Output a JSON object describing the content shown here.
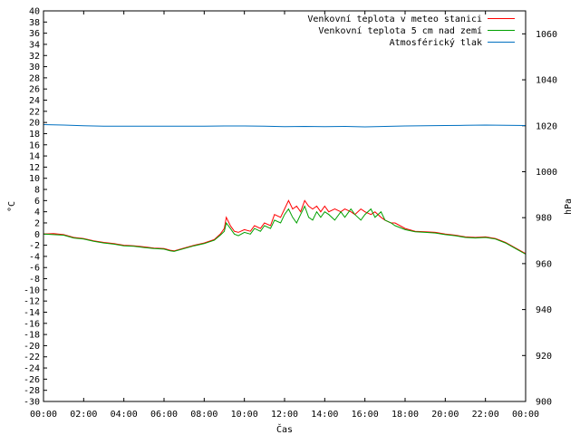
{
  "chart_data": {
    "type": "line",
    "xlabel": "Čas",
    "ylabel_left": "°C",
    "ylabel_right": "hPa",
    "x_tick_labels": [
      "00:00",
      "02:00",
      "04:00",
      "06:00",
      "08:00",
      "10:00",
      "12:00",
      "14:00",
      "16:00",
      "18:00",
      "20:00",
      "22:00",
      "00:00"
    ],
    "x_range_hours": [
      0,
      24
    ],
    "y_left_range": [
      -30,
      40
    ],
    "y_left_step": 2,
    "y_right_range": [
      900,
      1070
    ],
    "y_right_ticks": [
      900,
      920,
      940,
      960,
      980,
      1000,
      1020,
      1040,
      1060
    ],
    "grid": false,
    "legend_position": "top-right",
    "series": [
      {
        "name": "Venkovní teplota v meteo stanici",
        "color": "#ff0000",
        "axis": "left",
        "x": [
          0,
          0.5,
          1,
          1.5,
          2,
          2.5,
          3,
          3.5,
          4,
          4.5,
          5,
          5.5,
          6,
          6.3,
          6.5,
          7,
          7.5,
          8,
          8.5,
          8.8,
          9,
          9.1,
          9.3,
          9.5,
          9.7,
          10,
          10.3,
          10.5,
          10.8,
          11,
          11.3,
          11.5,
          11.8,
          12,
          12.2,
          12.4,
          12.6,
          12.8,
          13,
          13.2,
          13.4,
          13.6,
          13.8,
          14,
          14.2,
          14.5,
          14.8,
          15,
          15.3,
          15.5,
          15.8,
          16,
          16.3,
          16.5,
          16.8,
          17,
          17.3,
          17.5,
          18,
          18.5,
          19,
          19.5,
          20,
          20.5,
          21,
          21.5,
          22,
          22.5,
          23,
          23.5,
          24
        ],
        "values": [
          0,
          0.1,
          -0.1,
          -0.6,
          -0.8,
          -1.2,
          -1.5,
          -1.7,
          -2.0,
          -2.1,
          -2.3,
          -2.5,
          -2.6,
          -2.9,
          -3.0,
          -2.5,
          -2.0,
          -1.6,
          -1.0,
          0.0,
          1.0,
          3.0,
          1.5,
          0.5,
          0.3,
          0.8,
          0.5,
          1.5,
          1.0,
          2.0,
          1.5,
          3.5,
          3.0,
          4.5,
          6.0,
          4.5,
          5.0,
          4.0,
          6.0,
          5.0,
          4.5,
          5.0,
          4.0,
          5.0,
          4.0,
          4.5,
          4.0,
          4.5,
          4.0,
          3.5,
          4.5,
          4.0,
          3.5,
          4.0,
          3.0,
          2.5,
          2.0,
          2.0,
          1.0,
          0.5,
          0.4,
          0.3,
          0.0,
          -0.2,
          -0.5,
          -0.6,
          -0.5,
          -0.8,
          -1.5,
          -2.5,
          -3.5
        ]
      },
      {
        "name": "Venkovní teplota 5 cm nad zemí",
        "color": "#00a000",
        "axis": "left",
        "x": [
          0,
          0.5,
          1,
          1.5,
          2,
          2.5,
          3,
          3.5,
          4,
          4.5,
          5,
          5.5,
          6,
          6.3,
          6.5,
          7,
          7.5,
          8,
          8.5,
          8.8,
          9,
          9.1,
          9.3,
          9.5,
          9.7,
          10,
          10.3,
          10.5,
          10.8,
          11,
          11.3,
          11.5,
          11.8,
          12,
          12.2,
          12.4,
          12.6,
          12.8,
          13,
          13.2,
          13.4,
          13.6,
          13.8,
          14,
          14.2,
          14.5,
          14.8,
          15,
          15.3,
          15.5,
          15.8,
          16,
          16.3,
          16.5,
          16.8,
          17,
          17.3,
          17.5,
          18,
          18.5,
          19,
          19.5,
          20,
          20.5,
          21,
          21.5,
          22,
          22.5,
          23,
          23.5,
          24
        ],
        "values": [
          0,
          -0.1,
          -0.2,
          -0.7,
          -0.9,
          -1.3,
          -1.6,
          -1.8,
          -2.1,
          -2.2,
          -2.4,
          -2.6,
          -2.7,
          -3.0,
          -3.1,
          -2.6,
          -2.1,
          -1.7,
          -1.1,
          -0.2,
          0.5,
          2.0,
          1.0,
          0.0,
          -0.3,
          0.3,
          0.0,
          1.0,
          0.5,
          1.5,
          1.0,
          2.5,
          2.0,
          3.5,
          4.5,
          3.0,
          2.0,
          3.5,
          5.0,
          3.0,
          2.5,
          4.0,
          3.0,
          4.0,
          3.5,
          2.5,
          4.0,
          3.0,
          4.5,
          3.5,
          2.5,
          3.5,
          4.5,
          3.0,
          4.0,
          2.5,
          2.0,
          1.5,
          0.8,
          0.4,
          0.3,
          0.2,
          -0.1,
          -0.3,
          -0.6,
          -0.7,
          -0.6,
          -0.9,
          -1.6,
          -2.6,
          -3.6
        ]
      },
      {
        "name": "Atmosférický tlak",
        "color": "#0070c0",
        "axis": "right",
        "x": [
          0,
          1,
          2,
          3,
          4,
          5,
          6,
          7,
          8,
          9,
          10,
          11,
          12,
          13,
          14,
          15,
          16,
          17,
          18,
          19,
          20,
          21,
          22,
          23,
          24
        ],
        "values": [
          1020.5,
          1020.3,
          1020.0,
          1019.8,
          1019.8,
          1019.8,
          1019.8,
          1019.8,
          1019.8,
          1019.9,
          1019.9,
          1019.8,
          1019.6,
          1019.7,
          1019.6,
          1019.7,
          1019.5,
          1019.7,
          1019.9,
          1020.0,
          1020.1,
          1020.2,
          1020.3,
          1020.2,
          1020.1
        ]
      }
    ]
  }
}
